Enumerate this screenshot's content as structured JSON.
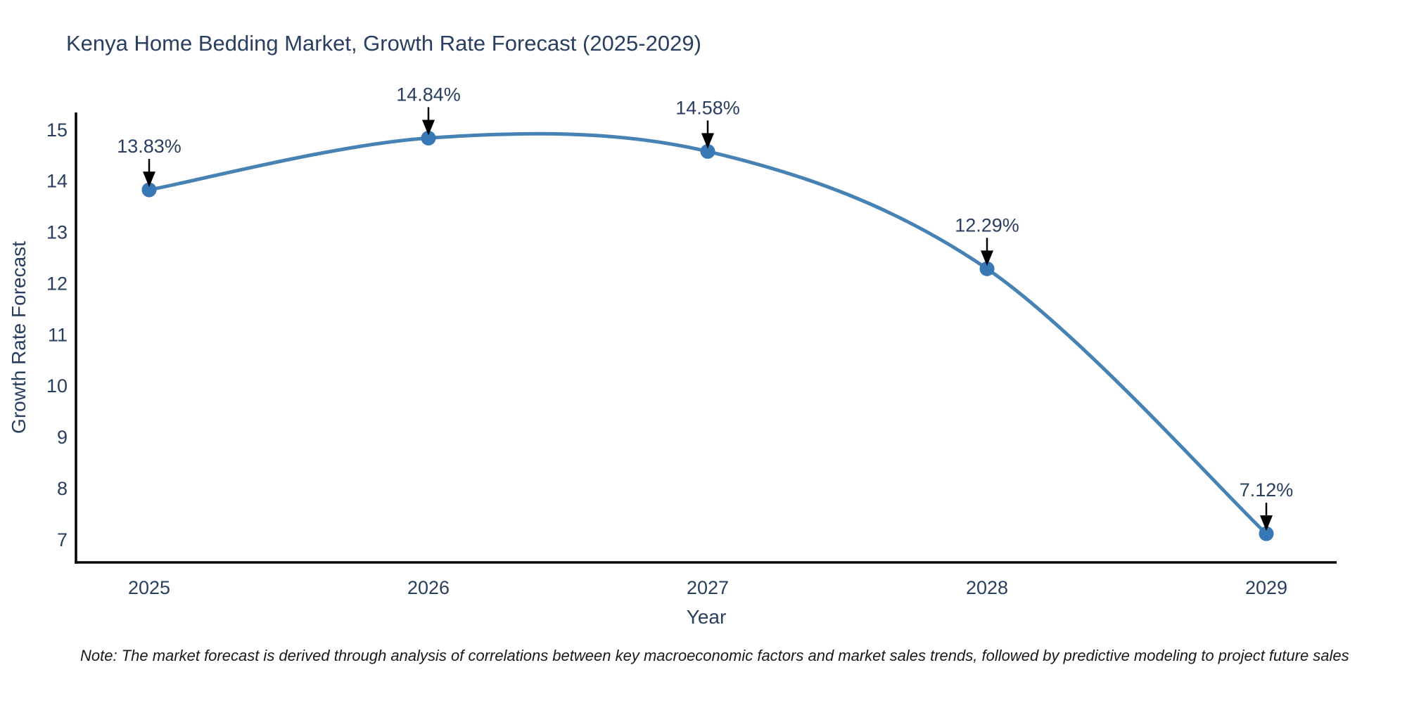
{
  "chart_data": {
    "type": "line",
    "title": "Kenya Home Bedding Market, Growth Rate Forecast (2025-2029)",
    "xlabel": "Year",
    "ylabel": "Growth Rate Forecast",
    "x": [
      2025,
      2026,
      2027,
      2028,
      2029
    ],
    "series": [
      {
        "name": "Growth Rate Forecast",
        "values": [
          13.83,
          14.84,
          14.58,
          12.29,
          7.12
        ],
        "point_labels": [
          "13.83%",
          "14.84%",
          "14.58%",
          "12.29%",
          "7.12%"
        ]
      }
    ],
    "x_tick_labels": [
      "2025",
      "2026",
      "2027",
      "2028",
      "2029"
    ],
    "y_ticks": [
      7,
      8,
      9,
      10,
      11,
      12,
      13,
      14,
      15
    ],
    "ylim": [
      6.56,
      15.34
    ],
    "grid": false,
    "legend_position": "none",
    "line_shape": "spline",
    "colors": {
      "line": "#4682b4",
      "marker": "#3878b4",
      "axis": "#000000",
      "text": "#2a3f5f",
      "annotation_arrow": "#000000"
    }
  },
  "note": "Note: The market forecast is derived through analysis of correlations between key macroeconomic factors and market sales trends, followed by predictive modeling to project future sales"
}
